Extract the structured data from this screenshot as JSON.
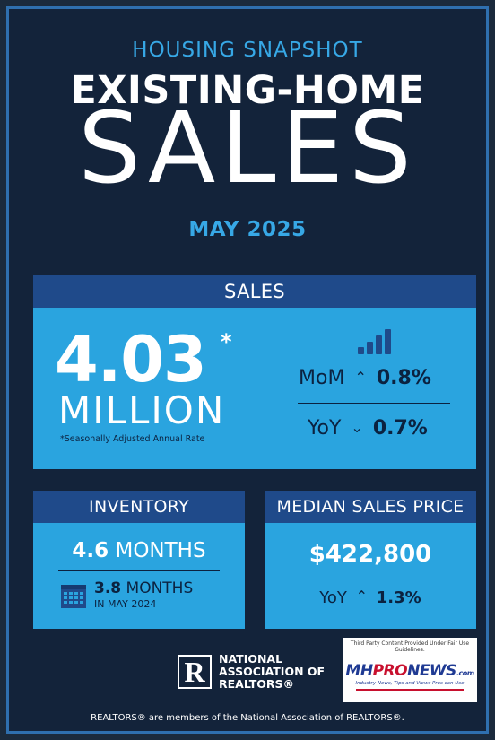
{
  "header": {
    "kicker": "HOUSING SNAPSHOT",
    "title_line1": "EXISTING-HOME",
    "title_line2": "SALES",
    "month": "MAY 2025"
  },
  "sales": {
    "label": "SALES",
    "value": "4.03",
    "asterisk": "*",
    "unit": "MILLION",
    "footnote": "*Seasonally Adjusted Annual Rate",
    "mom_label": "MoM",
    "mom_direction": "up",
    "mom_value": "0.8%",
    "yoy_label": "YoY",
    "yoy_direction": "down",
    "yoy_value": "0.7%",
    "icon": "bar-chart-icon"
  },
  "inventory": {
    "label": "INVENTORY",
    "value": "4.6",
    "unit": "MONTHS",
    "prior_value": "3.8",
    "prior_unit": "MONTHS",
    "prior_note": "IN MAY 2024",
    "icon": "calendar-icon"
  },
  "median_price": {
    "label": "MEDIAN SALES PRICE",
    "value": "$422,800",
    "yoy_label": "YoY",
    "yoy_direction": "up",
    "yoy_value": "1.3%"
  },
  "nar": {
    "logo_letter": "R",
    "name": "NATIONAL ASSOCIATION OF REALTORS®",
    "name_line1": "NATIONAL",
    "name_line2": "ASSOCIATION OF",
    "name_line3": "REALTORS®"
  },
  "watermark": {
    "notice": "Third Party Content Provided Under Fair Use Guidelines.",
    "brand_mh": "MH",
    "brand_pro": "PRO",
    "brand_news": "NEWS",
    "brand_com": ".com",
    "tagline": "Industry News, Tips and Views Pros can Use"
  },
  "footer": {
    "disclaimer": "REALTORS® are members of the National Association of REALTORS®."
  },
  "colors": {
    "background": "#13233a",
    "accent_blue": "#37a8e6",
    "card_body": "#2aa4df",
    "card_header": "#1f4a8a",
    "dark_text": "#0b2240"
  }
}
